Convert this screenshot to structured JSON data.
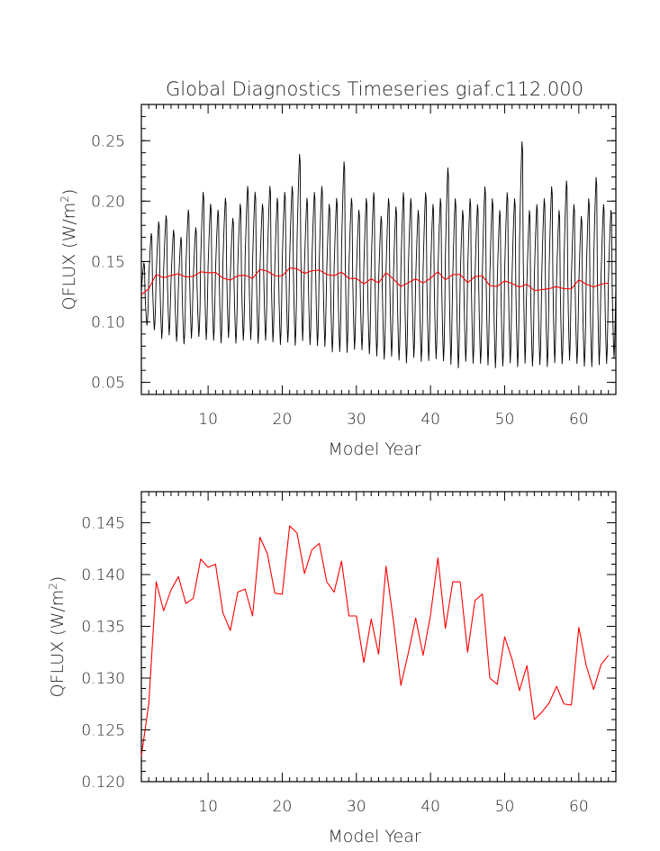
{
  "title": "Global Diagnostics Timeseries giaf.c112.000",
  "chart_data": [
    {
      "type": "line",
      "title": "Global Diagnostics Timeseries giaf.c112.000",
      "xlabel": "Model Year",
      "ylabel_main": "QFLUX (W/m",
      "ylabel_sup": "2",
      "ylabel_close": ")",
      "xlim": [
        1,
        65
      ],
      "ylim": [
        0.04,
        0.28
      ],
      "xticks": [
        10,
        20,
        30,
        40,
        50,
        60
      ],
      "xtick_labels": [
        "10",
        "20",
        "30",
        "40",
        "50",
        "60"
      ],
      "yticks": [
        0.05,
        0.1,
        0.15,
        0.2,
        0.25
      ],
      "ytick_labels": [
        "0.05",
        "0.10",
        "0.15",
        "0.20",
        "0.25"
      ],
      "grid": false,
      "series": [
        {
          "color": "#000000",
          "resolution": "monthly",
          "year_start": 1,
          "year_end": 65,
          "annual_min": [
            0.095,
            0.09,
            0.082,
            0.085,
            0.08,
            0.078,
            0.082,
            0.084,
            0.08,
            0.08,
            0.078,
            0.082,
            0.078,
            0.08,
            0.08,
            0.077,
            0.08,
            0.078,
            0.076,
            0.078,
            0.075,
            0.078,
            0.076,
            0.075,
            0.074,
            0.07,
            0.07,
            0.068,
            0.072,
            0.072,
            0.068,
            0.066,
            0.064,
            0.066,
            0.063,
            0.06,
            0.065,
            0.062,
            0.062,
            0.064,
            0.062,
            0.058,
            0.056,
            0.062,
            0.06,
            0.06,
            0.058,
            0.056,
            0.058,
            0.06,
            0.057,
            0.058,
            0.058,
            0.059,
            0.057,
            0.06,
            0.06,
            0.062,
            0.06,
            0.058,
            0.057,
            0.058,
            0.06,
            0.065,
            0.068
          ],
          "annual_max": [
            0.15,
            0.175,
            0.185,
            0.19,
            0.178,
            0.172,
            0.195,
            0.18,
            0.21,
            0.2,
            0.195,
            0.205,
            0.188,
            0.2,
            0.215,
            0.21,
            0.2,
            0.215,
            0.205,
            0.21,
            0.215,
            0.242,
            0.205,
            0.21,
            0.215,
            0.2,
            0.205,
            0.236,
            0.205,
            0.195,
            0.205,
            0.21,
            0.19,
            0.205,
            0.198,
            0.21,
            0.205,
            0.195,
            0.21,
            0.2,
            0.205,
            0.231,
            0.205,
            0.195,
            0.205,
            0.2,
            0.215,
            0.205,
            0.195,
            0.21,
            0.205,
            0.253,
            0.195,
            0.2,
            0.205,
            0.215,
            0.195,
            0.22,
            0.2,
            0.19,
            0.205,
            0.223,
            0.2,
            0.195,
            0.18
          ]
        },
        {
          "color": "#ff0000",
          "resolution": "annual",
          "x": [
            1,
            2,
            3,
            4,
            5,
            6,
            7,
            8,
            9,
            10,
            11,
            12,
            13,
            14,
            15,
            16,
            17,
            18,
            19,
            20,
            21,
            22,
            23,
            24,
            25,
            26,
            27,
            28,
            29,
            30,
            31,
            32,
            33,
            34,
            35,
            36,
            37,
            38,
            39,
            40,
            41,
            42,
            43,
            44,
            45,
            46,
            47,
            48,
            49,
            50,
            51,
            52,
            53,
            54,
            55,
            56,
            57,
            58,
            59,
            60,
            61,
            62,
            63,
            64
          ],
          "y": [
            0.1225,
            0.1275,
            0.1393,
            0.1365,
            0.1385,
            0.1398,
            0.1372,
            0.1377,
            0.1415,
            0.1407,
            0.141,
            0.1363,
            0.1346,
            0.1383,
            0.1386,
            0.136,
            0.1436,
            0.142,
            0.1382,
            0.1381,
            0.1447,
            0.144,
            0.1401,
            0.1424,
            0.143,
            0.1393,
            0.1383,
            0.1413,
            0.136,
            0.136,
            0.1315,
            0.1357,
            0.1323,
            0.1408,
            0.1355,
            0.1293,
            0.1324,
            0.1358,
            0.1322,
            0.1361,
            0.1416,
            0.1348,
            0.1393,
            0.1393,
            0.1325,
            0.1375,
            0.1381,
            0.13,
            0.1294,
            0.134,
            0.1318,
            0.1288,
            0.1312,
            0.126,
            0.1267,
            0.1276,
            0.1292,
            0.1275,
            0.1274,
            0.1349,
            0.1312,
            0.1289,
            0.1313,
            0.1322
          ]
        }
      ]
    },
    {
      "type": "line",
      "xlabel": "Model Year",
      "ylabel_main": "QFLUX (W/m",
      "ylabel_sup": "2",
      "ylabel_close": ")",
      "xlim": [
        1,
        65
      ],
      "ylim": [
        0.12,
        0.148
      ],
      "xticks": [
        10,
        20,
        30,
        40,
        50,
        60
      ],
      "xtick_labels": [
        "10",
        "20",
        "30",
        "40",
        "50",
        "60"
      ],
      "yticks": [
        0.12,
        0.125,
        0.13,
        0.135,
        0.14,
        0.145
      ],
      "ytick_labels": [
        "0.120",
        "0.125",
        "0.130",
        "0.135",
        "0.140",
        "0.145"
      ],
      "grid": false,
      "series": [
        {
          "color": "#ff0000",
          "x": [
            1,
            2,
            3,
            4,
            5,
            6,
            7,
            8,
            9,
            10,
            11,
            12,
            13,
            14,
            15,
            16,
            17,
            18,
            19,
            20,
            21,
            22,
            23,
            24,
            25,
            26,
            27,
            28,
            29,
            30,
            31,
            32,
            33,
            34,
            35,
            36,
            37,
            38,
            39,
            40,
            41,
            42,
            43,
            44,
            45,
            46,
            47,
            48,
            49,
            50,
            51,
            52,
            53,
            54,
            55,
            56,
            57,
            58,
            59,
            60,
            61,
            62,
            63,
            64
          ],
          "y": [
            0.1225,
            0.1275,
            0.1393,
            0.1365,
            0.1385,
            0.1398,
            0.1372,
            0.1377,
            0.1415,
            0.1407,
            0.141,
            0.1363,
            0.1346,
            0.1383,
            0.1386,
            0.136,
            0.1436,
            0.142,
            0.1382,
            0.1381,
            0.1447,
            0.144,
            0.1401,
            0.1424,
            0.143,
            0.1393,
            0.1383,
            0.1413,
            0.136,
            0.136,
            0.1315,
            0.1357,
            0.1323,
            0.1408,
            0.1355,
            0.1293,
            0.1324,
            0.1358,
            0.1322,
            0.1361,
            0.1416,
            0.1348,
            0.1393,
            0.1393,
            0.1325,
            0.1375,
            0.1381,
            0.13,
            0.1294,
            0.134,
            0.1318,
            0.1288,
            0.1312,
            0.126,
            0.1267,
            0.1276,
            0.1292,
            0.1275,
            0.1274,
            0.1349,
            0.1312,
            0.1289,
            0.1313,
            0.1322
          ]
        }
      ]
    }
  ]
}
